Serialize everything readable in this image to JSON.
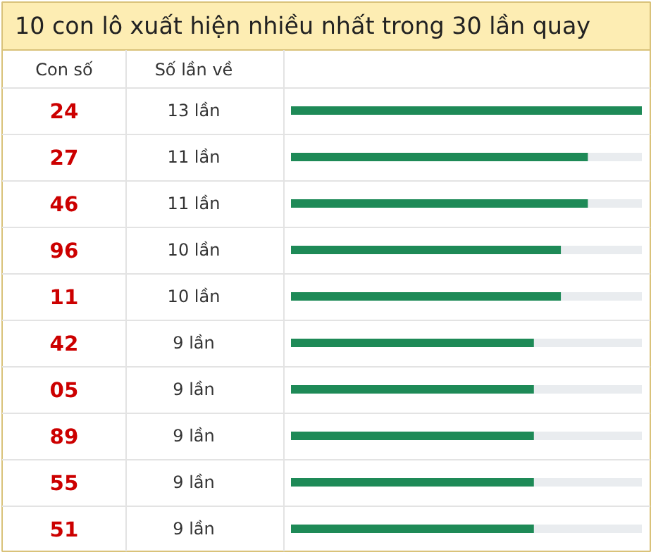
{
  "chart_data": {
    "type": "bar",
    "orientation": "horizontal",
    "title": "10 con lô xuất hiện nhiều nhất trong 30 lần quay",
    "annotations": [
      "Con số",
      "Số lần về"
    ],
    "categories": [
      "24",
      "27",
      "46",
      "96",
      "11",
      "42",
      "05",
      "89",
      "55",
      "51"
    ],
    "values": [
      13,
      11,
      11,
      10,
      10,
      9,
      9,
      9,
      9,
      9
    ],
    "value_labels": [
      "13 lần",
      "11 lần",
      "11 lần",
      "10 lần",
      "10 lần",
      "9 lần",
      "9 lần",
      "9 lần",
      "9 lần",
      "9 lần"
    ],
    "color": "#1e8a57"
  }
}
